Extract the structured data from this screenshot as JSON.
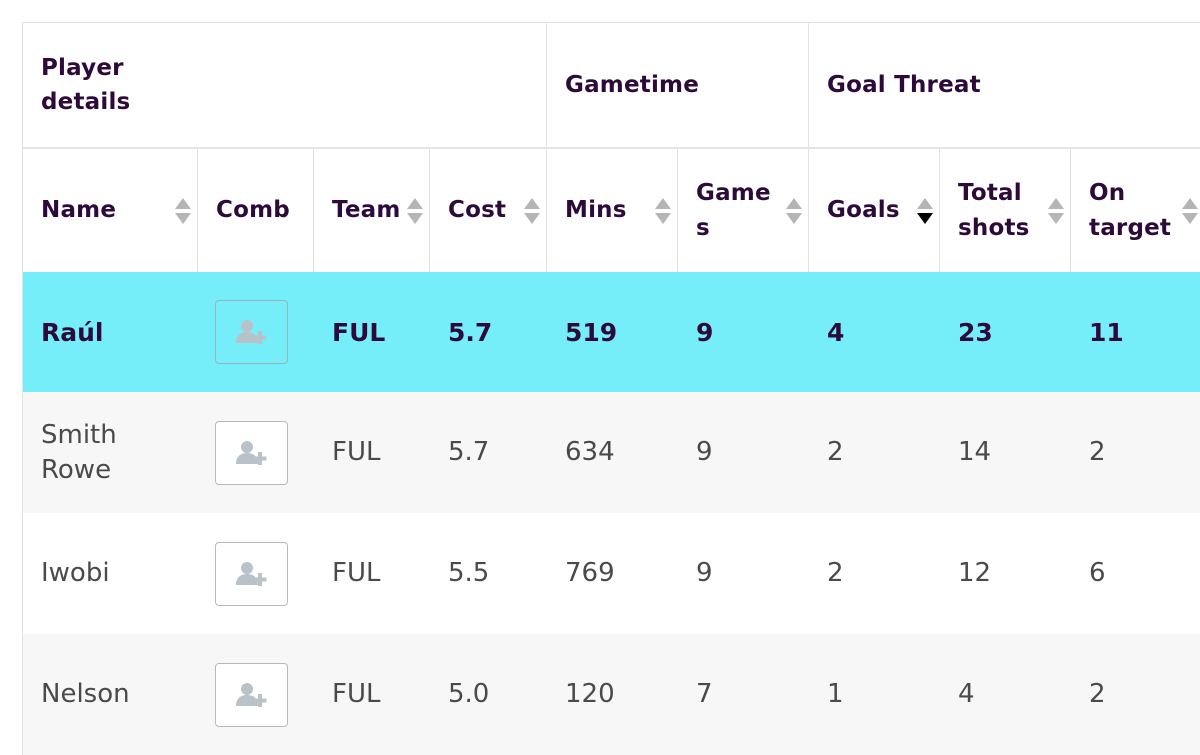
{
  "group_headers": {
    "player_details": "Player\ndetails",
    "gametime": "Gametime",
    "goal_threat": "Goal Threat"
  },
  "columns": {
    "name": "Name",
    "comb": "Comb",
    "team": "Team",
    "cost": "Cost",
    "mins": "Mins",
    "games": "Game\ns",
    "goals": "Goals",
    "total_shots": "Total\nshots",
    "on_target": "On\ntarget"
  },
  "sort": {
    "active_column": "goals",
    "direction": "descending"
  },
  "icons": {
    "compare_button": "add-user-icon",
    "sort": "sort-arrows-icon"
  },
  "colors": {
    "highlight_row": "#76eef9",
    "alt_row": "#f7f7f7",
    "header_text": "#2d0a3a"
  },
  "rows": [
    {
      "name": "Raúl",
      "team": "FUL",
      "cost": "5.7",
      "mins": "519",
      "games": "9",
      "goals": "4",
      "total_shots": "23",
      "on_target": "11",
      "highlighted": true
    },
    {
      "name": "Smith\nRowe",
      "team": "FUL",
      "cost": "5.7",
      "mins": "634",
      "games": "9",
      "goals": "2",
      "total_shots": "14",
      "on_target": "2",
      "highlighted": false
    },
    {
      "name": "Iwobi",
      "team": "FUL",
      "cost": "5.5",
      "mins": "769",
      "games": "9",
      "goals": "2",
      "total_shots": "12",
      "on_target": "6",
      "highlighted": false
    },
    {
      "name": "Nelson",
      "team": "FUL",
      "cost": "5.0",
      "mins": "120",
      "games": "7",
      "goals": "1",
      "total_shots": "4",
      "on_target": "2",
      "highlighted": false
    }
  ]
}
